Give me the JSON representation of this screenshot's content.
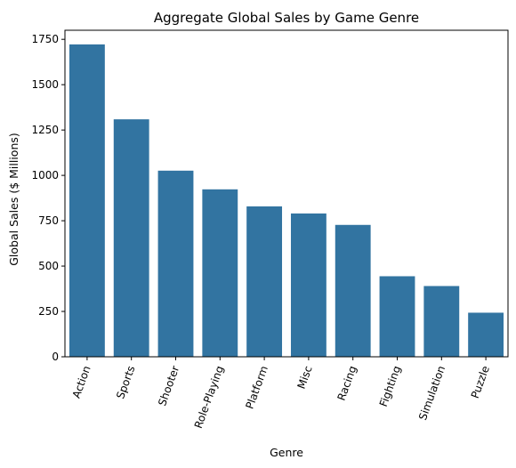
{
  "chart_data": {
    "type": "bar",
    "title": "Aggregate Global Sales by Game Genre",
    "xlabel": "Genre",
    "ylabel": "Global Sales ($ Millions)",
    "categories": [
      "Action",
      "Sports",
      "Shooter",
      "Role-Playing",
      "Platform",
      "Misc",
      "Racing",
      "Fighting",
      "Simulation",
      "Puzzle"
    ],
    "values": [
      1722,
      1309,
      1026,
      923,
      829,
      790,
      727,
      444,
      390,
      243
    ],
    "ylim": [
      0,
      1800
    ],
    "yticks": [
      0,
      250,
      500,
      750,
      1000,
      1250,
      1500,
      1750
    ],
    "bar_color": "#3274a1",
    "grid": false,
    "legend": "none"
  }
}
